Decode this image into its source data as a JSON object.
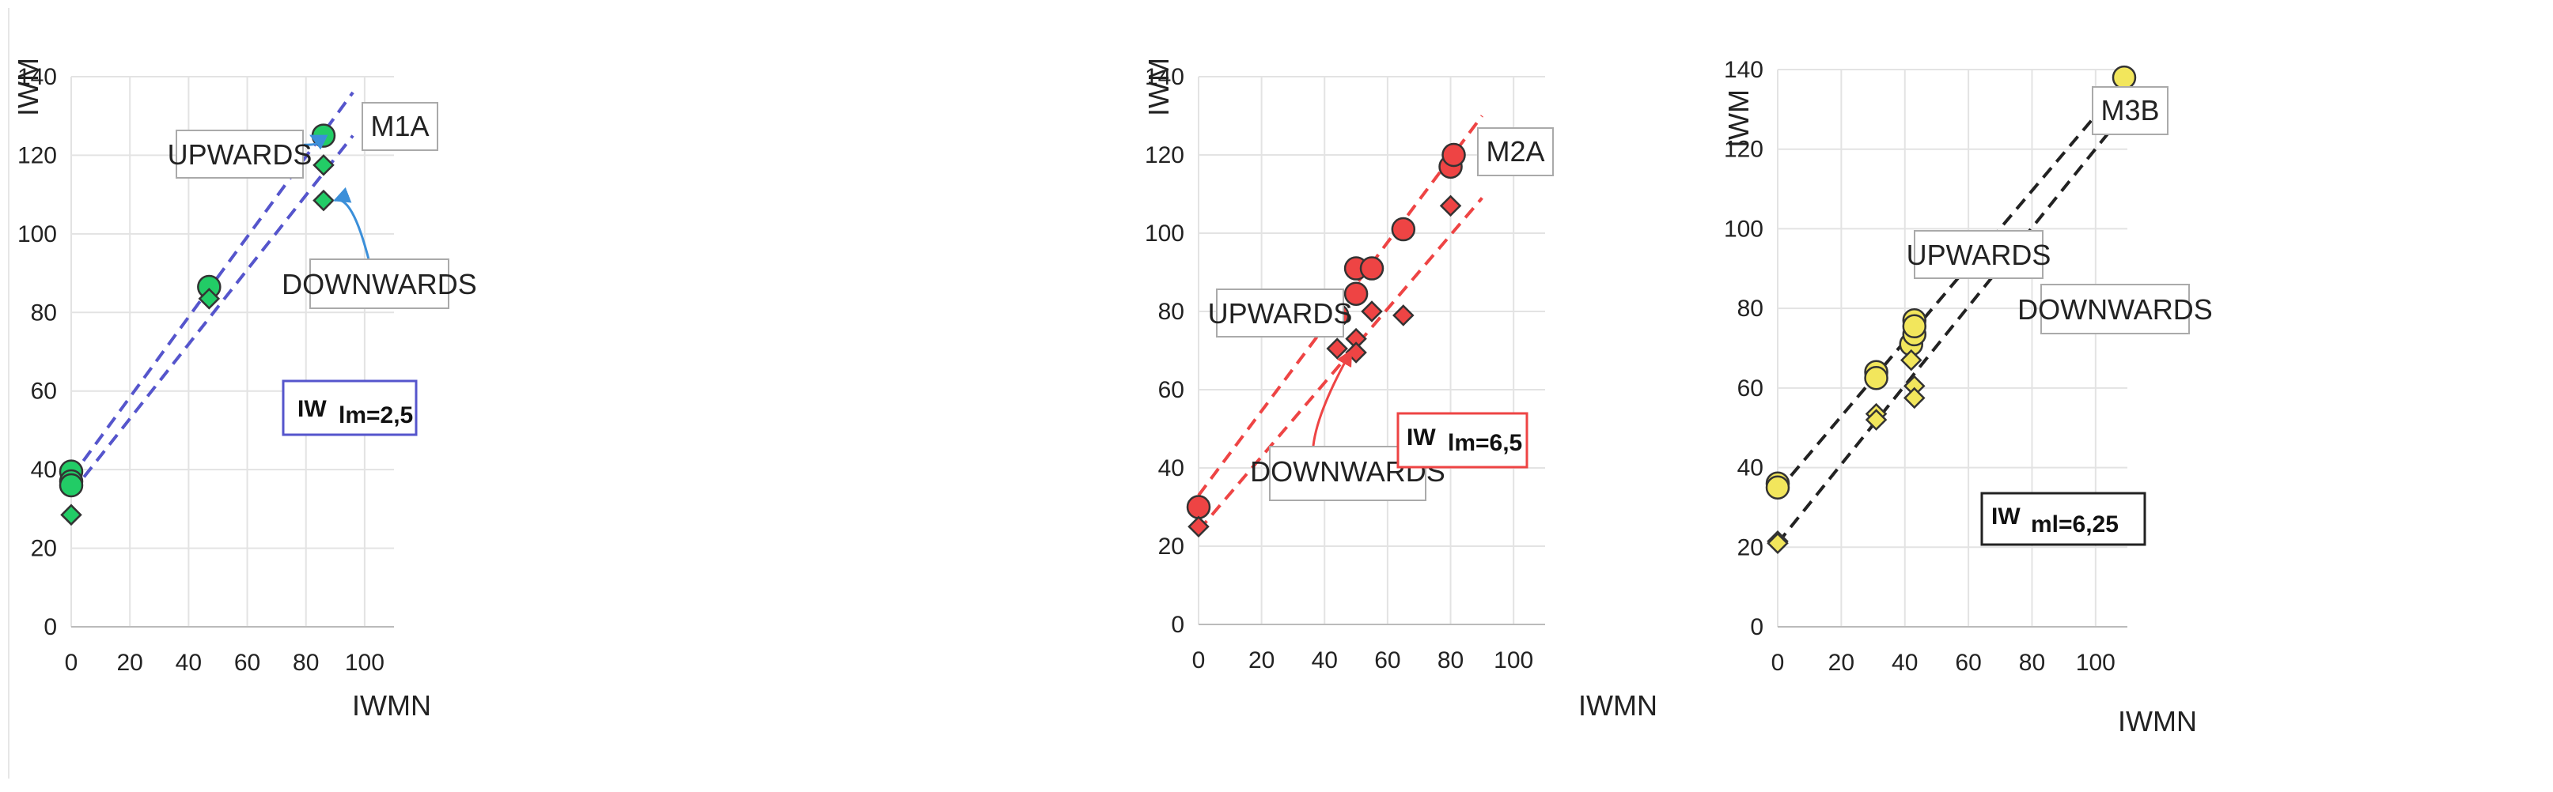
{
  "chart_data": [
    {
      "type": "scatter",
      "panel_label": "M1A",
      "xlabel": "IWMN",
      "ylabel": "IWM",
      "xlim": [
        0,
        110
      ],
      "ylim": [
        0,
        140
      ],
      "xticks": [
        0,
        20,
        40,
        60,
        80,
        100
      ],
      "yticks": [
        0,
        20,
        40,
        60,
        80,
        100,
        120,
        140
      ],
      "grid": true,
      "colors": {
        "marker": "#22cc66",
        "line": "#5555cc",
        "box": "#5555cc",
        "arrow": "#3b8fd9"
      },
      "series": [
        {
          "marker": "circle",
          "points": [
            [
              0,
              39.5
            ],
            [
              0,
              37
            ],
            [
              0,
              36
            ],
            [
              47,
              86.5
            ],
            [
              86,
              125
            ]
          ]
        },
        {
          "marker": "diamond",
          "points": [
            [
              0,
              28.5
            ],
            [
              47,
              83.5
            ],
            [
              86,
              117.5
            ],
            [
              86,
              108.5
            ]
          ]
        }
      ],
      "lines": [
        {
          "style": "dashed",
          "from": [
            0,
            38
          ],
          "to": [
            96,
            136
          ]
        },
        {
          "style": "dashed",
          "from": [
            0,
            34
          ],
          "to": [
            96,
            125
          ]
        }
      ],
      "annotations": [
        {
          "text": "UPWARDS",
          "arrow_to": [
            86,
            125
          ]
        },
        {
          "text": "DOWNWARDS",
          "arrow_to": [
            86,
            108.5
          ]
        },
        {
          "text": "IW",
          "subscript": "lm=2,5"
        }
      ]
    },
    {
      "type": "scatter",
      "panel_label": "M2A",
      "xlabel": "IWMN",
      "ylabel": "IWM",
      "xlim": [
        0,
        110
      ],
      "ylim": [
        0,
        140
      ],
      "xticks": [
        0,
        20,
        40,
        60,
        80,
        100
      ],
      "yticks": [
        0,
        20,
        40,
        60,
        80,
        100,
        120,
        140
      ],
      "grid": true,
      "colors": {
        "marker": "#ee4444",
        "line": "#ee4444",
        "box": "#ee4444",
        "arrow": "#ee4444"
      },
      "series": [
        {
          "marker": "circle",
          "points": [
            [
              0,
              30
            ],
            [
              44,
              79
            ],
            [
              50,
              91
            ],
            [
              50,
              84.5
            ],
            [
              55,
              91
            ],
            [
              65,
              101
            ],
            [
              80,
              117
            ],
            [
              81,
              120
            ]
          ]
        },
        {
          "marker": "diamond",
          "points": [
            [
              0,
              25
            ],
            [
              44,
              70.5
            ],
            [
              50,
              73
            ],
            [
              50,
              69.5
            ],
            [
              55,
              80
            ],
            [
              65,
              79
            ],
            [
              80,
              107
            ]
          ]
        }
      ],
      "lines": [
        {
          "style": "dashed",
          "from": [
            0,
            33
          ],
          "to": [
            90,
            130
          ]
        },
        {
          "style": "dashed",
          "from": [
            0,
            24
          ],
          "to": [
            90,
            109
          ]
        }
      ],
      "annotations": [
        {
          "text": "UPWARDS",
          "arrow_to": [
            44,
            79
          ]
        },
        {
          "text": "DOWNWARDS",
          "arrow_to": [
            45,
            70
          ]
        },
        {
          "text": "IW",
          "subscript": "lm=6,5"
        }
      ]
    },
    {
      "type": "scatter",
      "panel_label": "M3B",
      "xlabel": "IWMN",
      "ylabel": "IWM",
      "xlim": [
        0,
        110
      ],
      "ylim": [
        0,
        140
      ],
      "xticks": [
        0,
        20,
        40,
        60,
        80,
        100
      ],
      "yticks": [
        0,
        20,
        40,
        60,
        80,
        100,
        120,
        140
      ],
      "grid": true,
      "colors": {
        "marker": "#f2e65c",
        "line": "#222222",
        "box": "#222222"
      },
      "series": [
        {
          "marker": "circle",
          "points": [
            [
              0,
              36
            ],
            [
              0,
              35
            ],
            [
              31,
              64
            ],
            [
              31,
              62.5
            ],
            [
              42,
              71
            ],
            [
              43,
              73.5
            ],
            [
              43,
              77
            ],
            [
              43,
              75.5
            ],
            [
              109,
              138
            ]
          ]
        },
        {
          "marker": "diamond",
          "points": [
            [
              0,
              21.5
            ],
            [
              0,
              21
            ],
            [
              31,
              53.5
            ],
            [
              31,
              52
            ],
            [
              42,
              67
            ],
            [
              43,
              60.5
            ],
            [
              43,
              57.5
            ],
            [
              109,
              129.5
            ]
          ]
        }
      ],
      "lines": [
        {
          "style": "dashed",
          "from": [
            0,
            34
          ],
          "to": [
            108,
            136
          ]
        },
        {
          "style": "dashed",
          "from": [
            0,
            21
          ],
          "to": [
            108,
            128
          ]
        }
      ],
      "annotations": [
        {
          "text": "UPWARDS"
        },
        {
          "text": "DOWNWARDS"
        },
        {
          "text": "IW",
          "subscript": "ml=6,25"
        }
      ]
    }
  ]
}
